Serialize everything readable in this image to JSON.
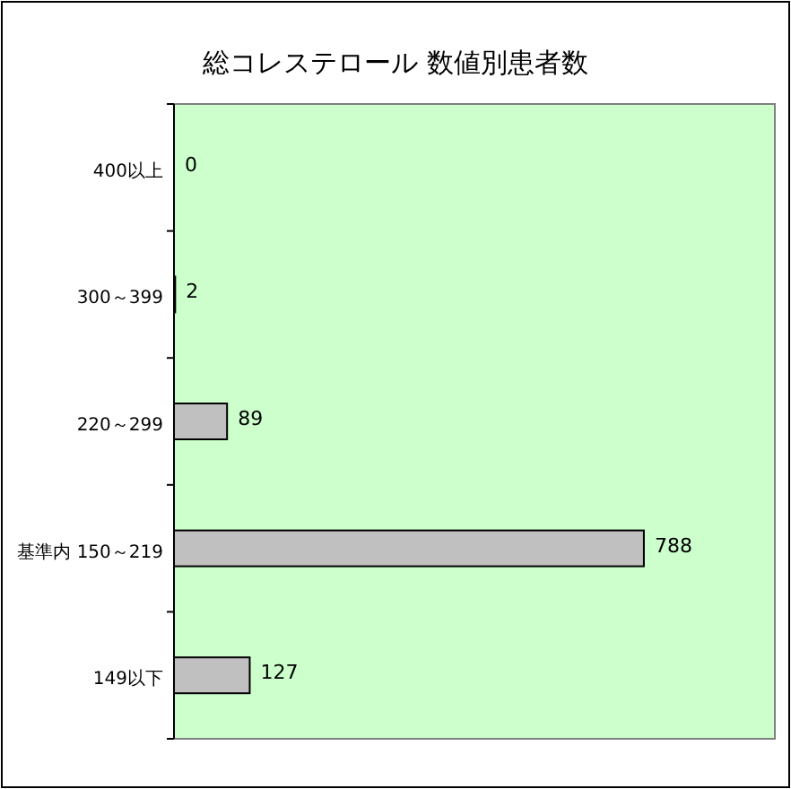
{
  "chart_data": {
    "type": "bar",
    "orientation": "horizontal",
    "title": "総コレステロール 数値別患者数",
    "categories": [
      "400以上",
      "300～399",
      "220～299",
      "基準内 150～219",
      "149以下"
    ],
    "values": [
      0,
      2,
      89,
      788,
      127
    ],
    "color": "#c0c0c0",
    "data_labels": true
  }
}
